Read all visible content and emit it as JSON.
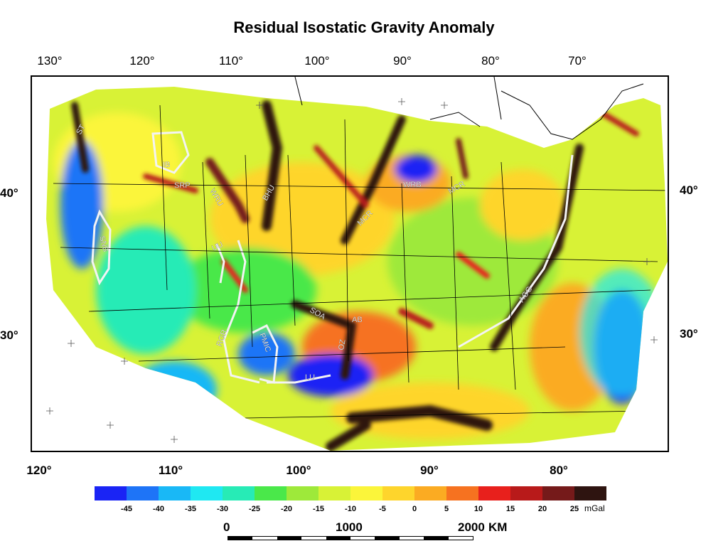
{
  "title": "Residual Isostatic Gravity Anomaly",
  "top_longitudes": [
    "130°",
    "120°",
    "110°",
    "100°",
    "90°",
    "80°",
    "70°"
  ],
  "bottom_longitudes": [
    "120°",
    "110°",
    "100°",
    "90°",
    "80°"
  ],
  "left_latitudes": [
    "40°",
    "30°"
  ],
  "right_latitudes": [
    "40°",
    "30°"
  ],
  "map_labels": [
    "ST",
    "IB",
    "SRP",
    "WRU",
    "BHU",
    "MCR",
    "WRB",
    "MCR",
    "SNB",
    "UU",
    "AGG",
    "AB",
    "SOA",
    "OZ",
    "RGR",
    "PMIC",
    "LU"
  ],
  "colorbar": {
    "colors": [
      "#1a24f5",
      "#1e74f7",
      "#19b8f6",
      "#1fe8f2",
      "#27ebb6",
      "#4ae84a",
      "#9ee93a",
      "#d8f236",
      "#fbf53a",
      "#fed52c",
      "#fbab22",
      "#f67220",
      "#e8201c",
      "#b81a1a",
      "#751a1a",
      "#2e1410"
    ],
    "tick_labels": [
      "-45",
      "-40",
      "-35",
      "-30",
      "-25",
      "-20",
      "-15",
      "-10",
      "-5",
      "0",
      "5",
      "10",
      "15",
      "20",
      "25"
    ],
    "unit": "mGal"
  },
  "scale": {
    "labels": [
      "0",
      "1000",
      "2000"
    ],
    "unit": "KM"
  }
}
